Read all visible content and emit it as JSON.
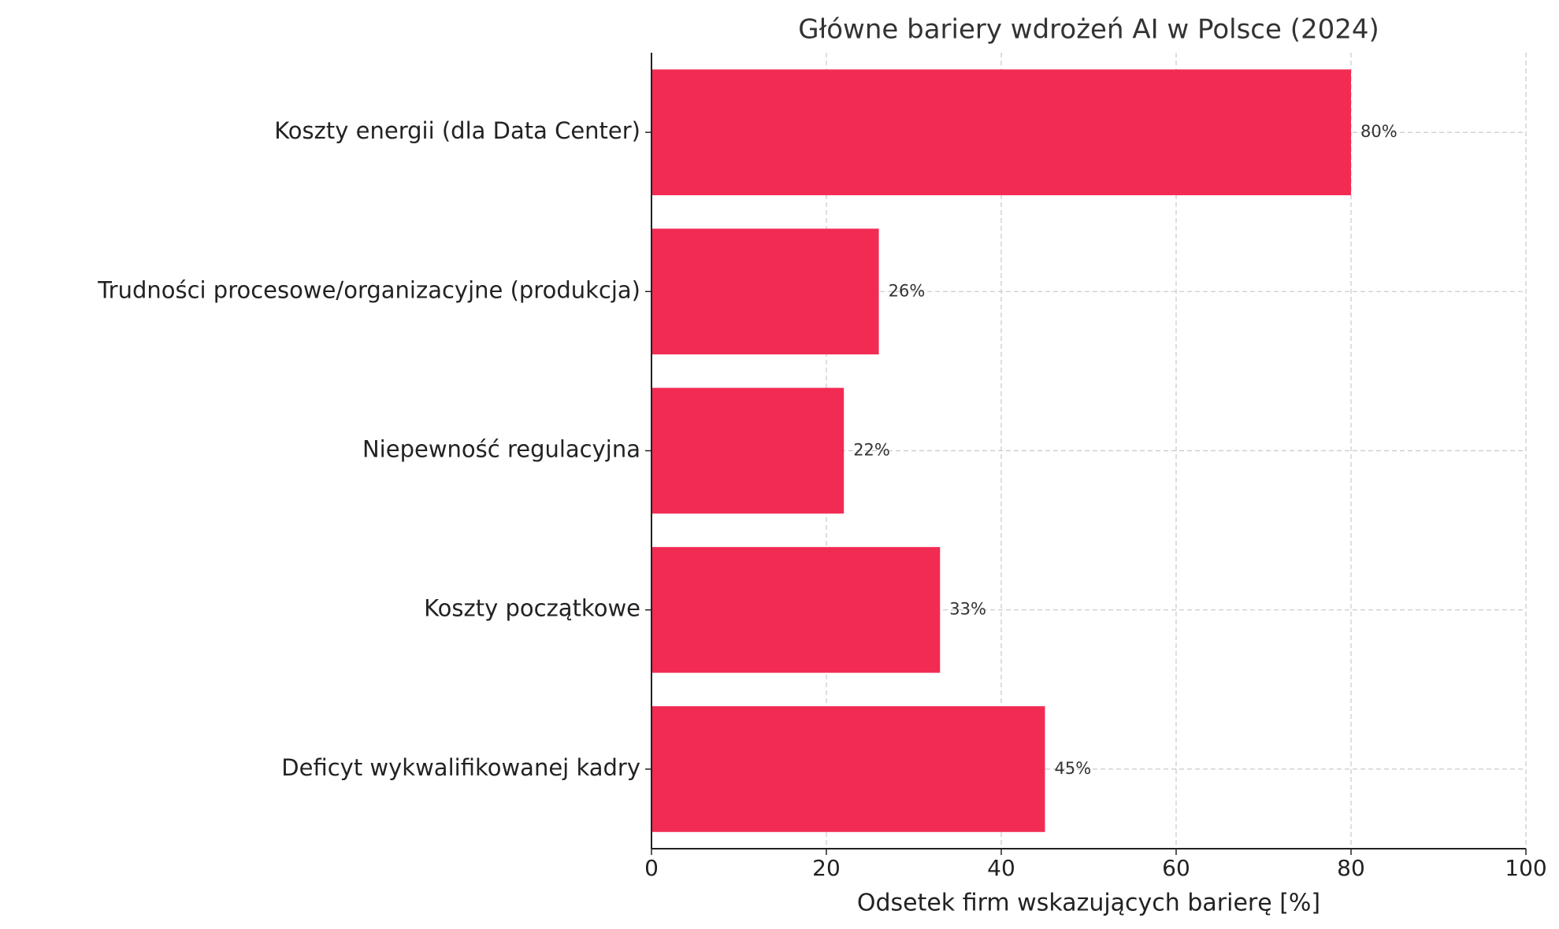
{
  "chart_data": {
    "type": "bar",
    "orientation": "horizontal",
    "title": "Główne bariery wdrożeń AI w Polsce (2024)",
    "x_label": "Odsetek firm wskazujących barierę [%]",
    "categories": [
      "Koszty energii (dla Data Center)",
      "Trudności procesowe/organizacyjne (produkcja)",
      "Niepewność regulacyjna",
      "Koszty początkowe",
      "Deficyt wykwalifikowanej kadry"
    ],
    "values": [
      80,
      26,
      22,
      33,
      45
    ],
    "value_labels": [
      "80%",
      "26%",
      "22%",
      "33%",
      "45%"
    ],
    "color": "#f22b53",
    "xlim": [
      0,
      100
    ],
    "xticks": [
      0,
      20,
      40,
      60,
      80,
      100
    ],
    "grid": true
  }
}
